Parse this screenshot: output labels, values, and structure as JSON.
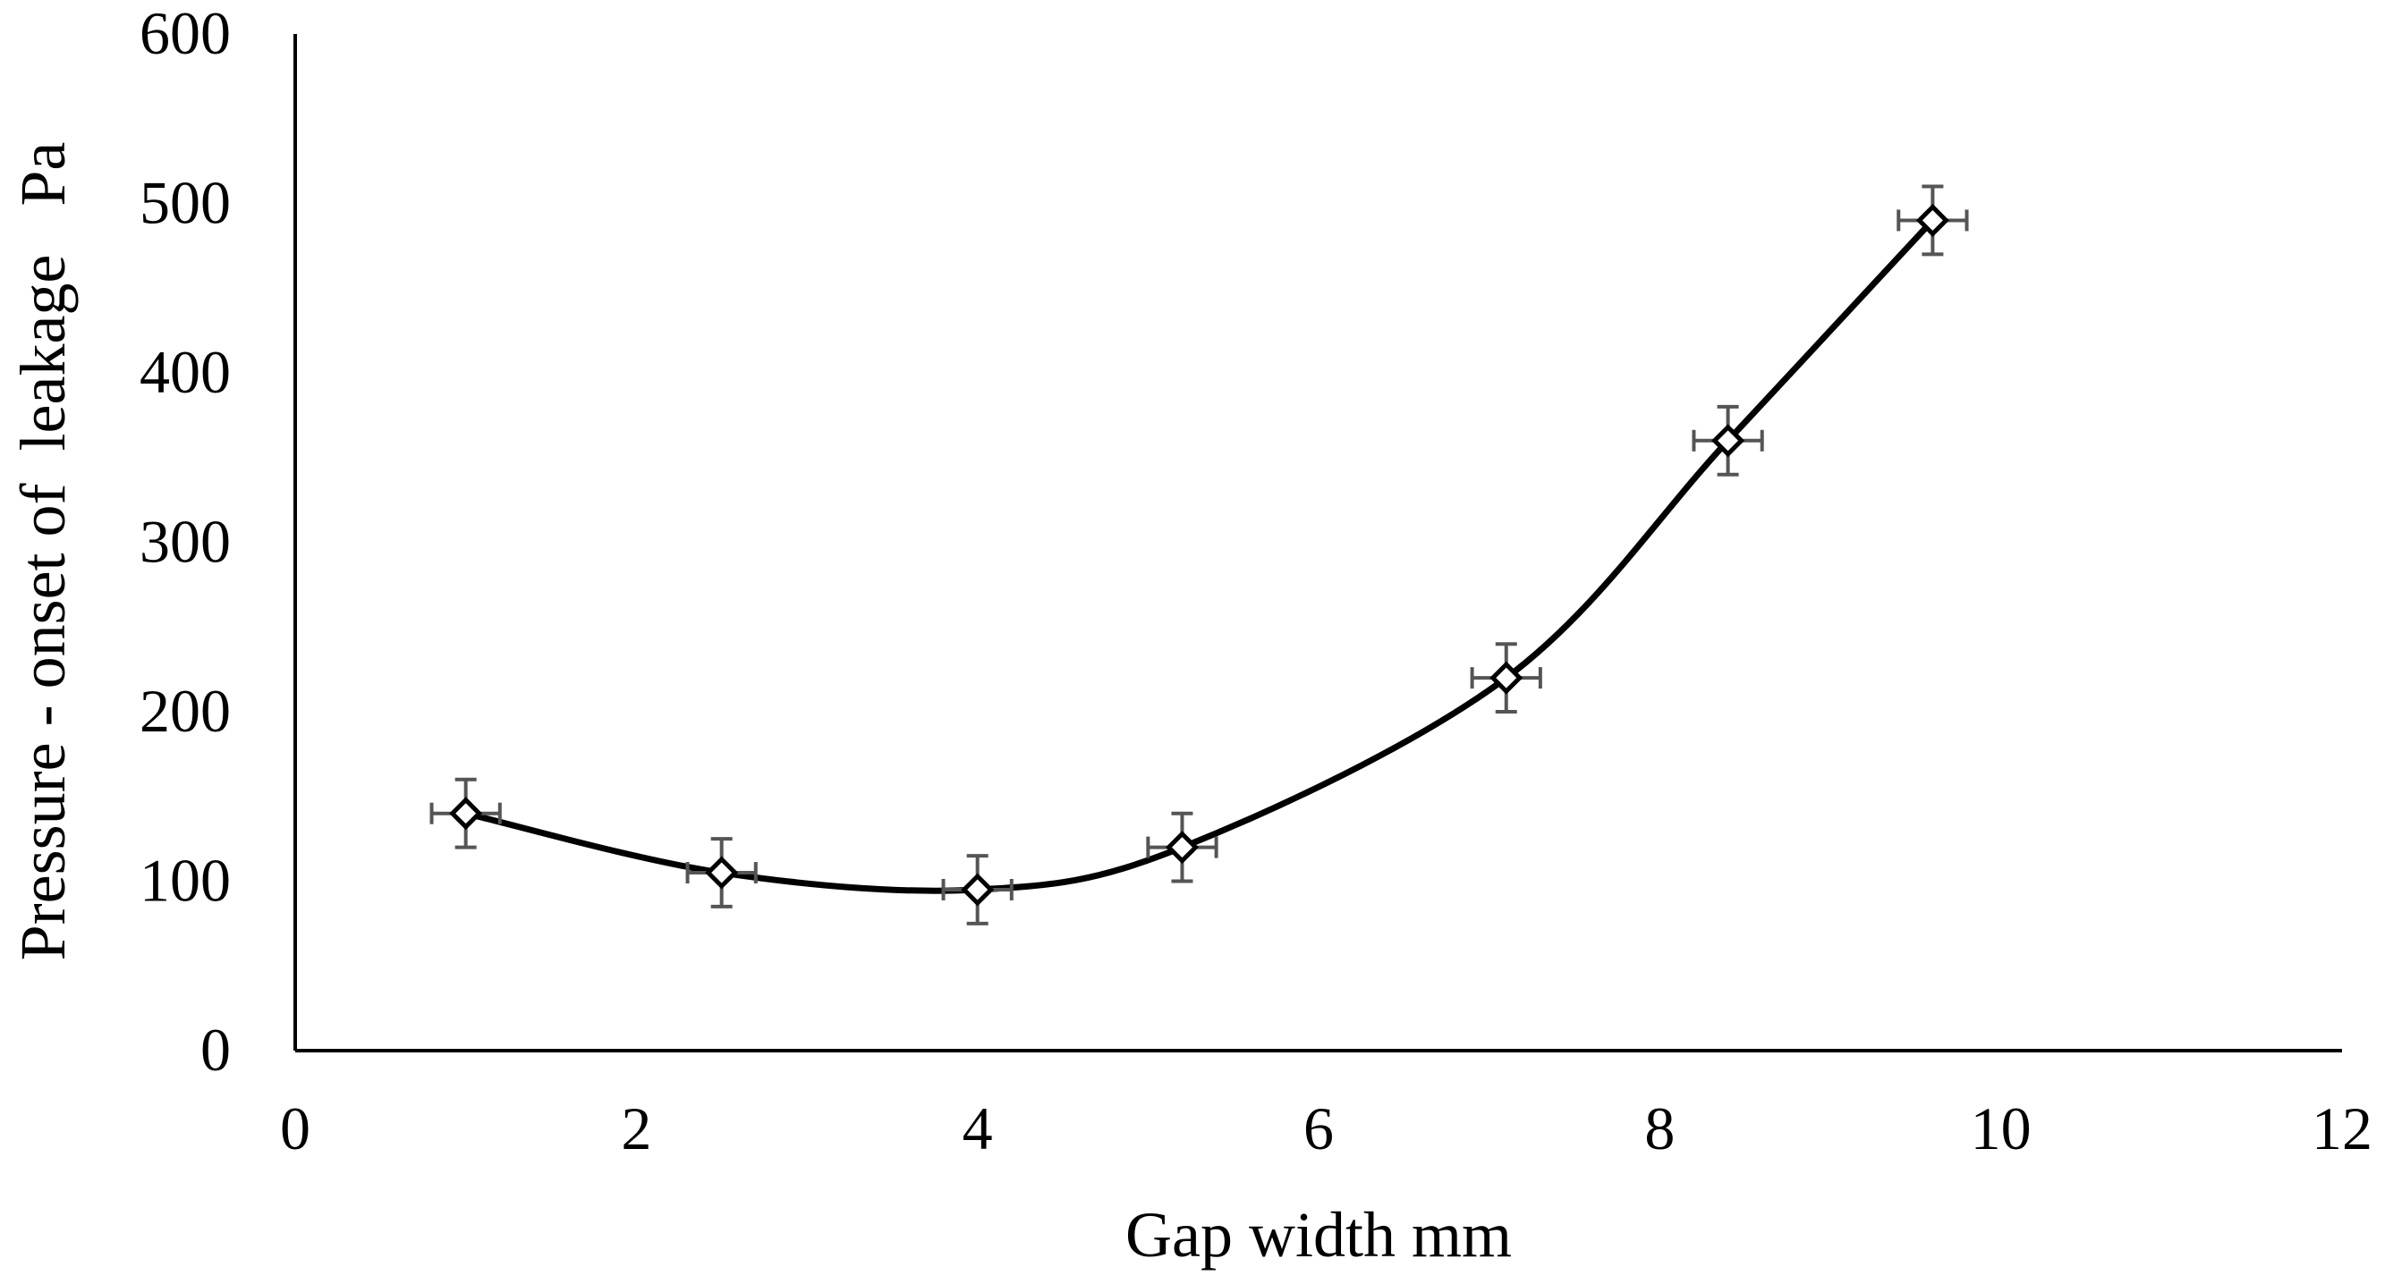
{
  "chart_data": {
    "type": "scatter",
    "title": "",
    "xlabel": "Gap width mm",
    "ylabel": "Pressure - onset of  leakage   Pa",
    "xlim": [
      0,
      12
    ],
    "ylim": [
      0,
      600
    ],
    "x_ticks": [
      0,
      2,
      4,
      6,
      8,
      10,
      12
    ],
    "y_ticks": [
      0,
      100,
      200,
      300,
      400,
      500,
      600
    ],
    "x_tick_labels": [
      "0",
      "2",
      "4",
      "6",
      "8",
      "10",
      "12"
    ],
    "y_tick_labels": [
      "0",
      "100",
      "200",
      "300",
      "400",
      "500",
      "600"
    ],
    "grid": false,
    "legend": "none",
    "marker": "open-diamond",
    "line": "smoothed",
    "colors": {
      "line": "#000000",
      "marker": "#000000",
      "error_bars": "#555555",
      "axis": "#000000"
    },
    "series": [
      {
        "x": [
          1.0,
          2.5,
          4.0,
          5.2,
          7.1,
          8.4,
          9.6
        ],
        "y": [
          140,
          105,
          95,
          120,
          220,
          360,
          490
        ],
        "x_error": [
          0.2,
          0.2,
          0.2,
          0.2,
          0.2,
          0.2,
          0.2
        ],
        "y_error": [
          20,
          20,
          20,
          20,
          20,
          20,
          20
        ]
      }
    ]
  }
}
